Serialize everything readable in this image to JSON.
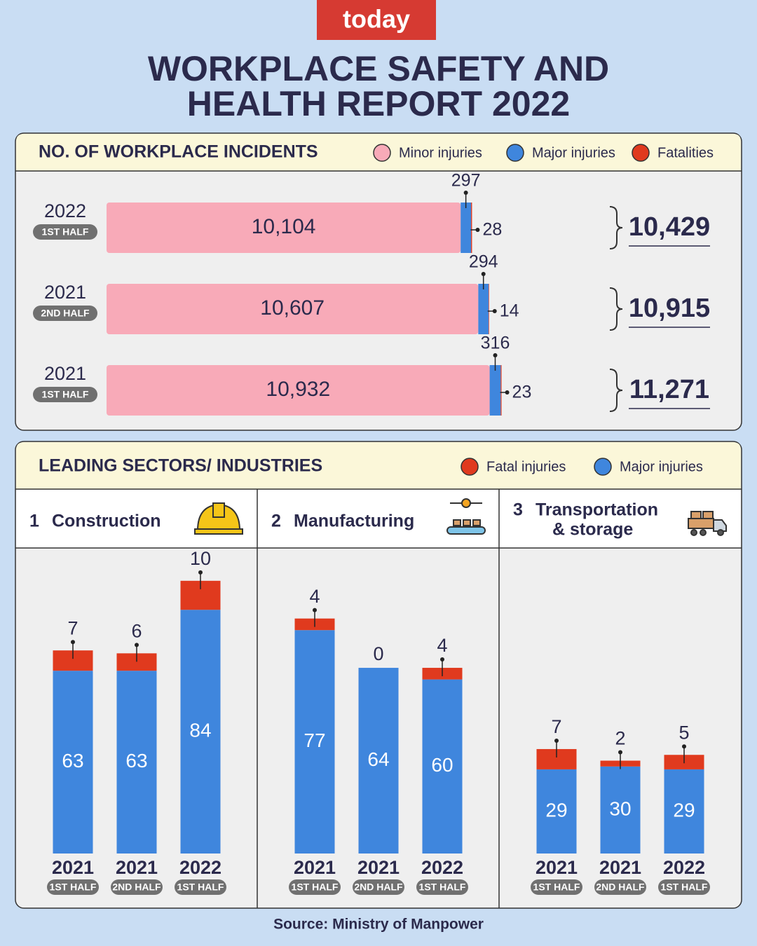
{
  "header": {
    "brand": "today",
    "title_lines": [
      "WORKPLACE SAFETY AND",
      "HEALTH REPORT 2022"
    ]
  },
  "chart_data": [
    {
      "type": "bar",
      "orientation": "horizontal",
      "stacked": true,
      "title": "NO. OF WORKPLACE INCIDENTS",
      "categories": [
        "2022",
        "2021",
        "2021"
      ],
      "category_sublabels": [
        "1ST HALF",
        "2ND HALF",
        "1ST HALF"
      ],
      "xlim": [
        0,
        14000
      ],
      "series": [
        {
          "name": "Minor injuries",
          "color": "#f8aab8",
          "values": [
            10104,
            10607,
            10932
          ],
          "value_labels": [
            "10,104",
            "10,607",
            "10,932"
          ]
        },
        {
          "name": "Major injuries",
          "color": "#3f86dd",
          "values": [
            297,
            294,
            316
          ]
        },
        {
          "name": "Fatalities",
          "color": "#e03a1e",
          "values": [
            28,
            14,
            23
          ]
        }
      ],
      "totals": [
        {
          "value": 10429,
          "label": "10,429"
        },
        {
          "value": 10915,
          "label": "10,915"
        },
        {
          "value": 11271,
          "label": "11,271"
        }
      ]
    },
    {
      "type": "bar",
      "stacked": true,
      "rank": "1",
      "title_lines": [
        "Construction"
      ],
      "categories": [
        "2021",
        "2021",
        "2022"
      ],
      "category_sublabels": [
        "1ST HALF",
        "2ND HALF",
        "1ST HALF"
      ],
      "ylim": [
        0,
        100
      ],
      "series": [
        {
          "name": "Major injuries",
          "color": "#3f86dd",
          "values": [
            63,
            63,
            84
          ]
        },
        {
          "name": "Fatal injuries",
          "color": "#e03a1e",
          "values": [
            7,
            6,
            10
          ]
        }
      ]
    },
    {
      "type": "bar",
      "stacked": true,
      "rank": "2",
      "title_lines": [
        "Manufacturing"
      ],
      "categories": [
        "2021",
        "2021",
        "2022"
      ],
      "category_sublabels": [
        "1ST HALF",
        "2ND HALF",
        "1ST HALF"
      ],
      "ylim": [
        0,
        100
      ],
      "series": [
        {
          "name": "Major injuries",
          "color": "#3f86dd",
          "values": [
            77,
            64,
            60
          ]
        },
        {
          "name": "Fatal injuries",
          "color": "#e03a1e",
          "values": [
            4,
            0,
            4
          ]
        }
      ]
    },
    {
      "type": "bar",
      "stacked": true,
      "rank": "3",
      "title_lines": [
        "Transportation",
        "& storage"
      ],
      "categories": [
        "2021",
        "2021",
        "2022"
      ],
      "category_sublabels": [
        "1ST HALF",
        "2ND HALF",
        "1ST HALF"
      ],
      "ylim": [
        0,
        100
      ],
      "series": [
        {
          "name": "Major injuries",
          "color": "#3f86dd",
          "values": [
            29,
            30,
            29
          ]
        },
        {
          "name": "Fatal injuries",
          "color": "#e03a1e",
          "values": [
            7,
            2,
            5
          ]
        }
      ]
    }
  ],
  "sectors_panel": {
    "title": "LEADING SECTORS/ INDUSTRIES"
  },
  "source": "Source: Ministry of Manpower"
}
